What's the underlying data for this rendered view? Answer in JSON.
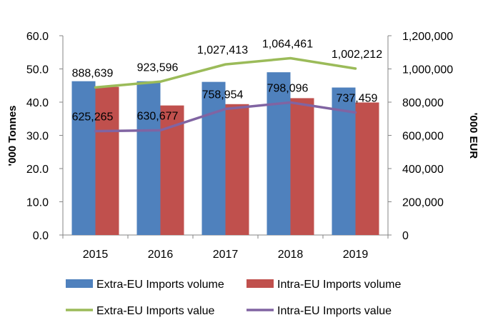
{
  "chart_data": {
    "type": "bar",
    "categories": [
      "2015",
      "2016",
      "2017",
      "2018",
      "2019"
    ],
    "series": [
      {
        "name": "Extra-EU Imports volume",
        "kind": "bar",
        "axis": "left",
        "color": "#4f81bd",
        "values": [
          46.3,
          46.3,
          46.1,
          49.0,
          44.4
        ]
      },
      {
        "name": "Intra-EU Imports volume",
        "kind": "bar",
        "axis": "left",
        "color": "#c0504d",
        "values": [
          44.6,
          39.0,
          39.4,
          41.2,
          39.9
        ]
      },
      {
        "name": "Extra-EU Imports value",
        "kind": "line",
        "axis": "right",
        "color": "#9bbb59",
        "values": [
          888639,
          923596,
          1027413,
          1064461,
          1002212
        ],
        "labels": [
          "888,639",
          "923,596",
          "1,027,413",
          "1,064,461",
          "1,002,212"
        ]
      },
      {
        "name": "Intra-EU Imports value",
        "kind": "line",
        "axis": "right",
        "color": "#8064a2",
        "values": [
          625265,
          630677,
          758954,
          798096,
          737459
        ],
        "labels": [
          "625,265",
          "630,677",
          "758,954",
          "798,096",
          "737,459"
        ]
      }
    ],
    "ylabel": "'000 Tonnes",
    "y2label": "'000 EUR",
    "ylim": [
      0,
      60
    ],
    "y2lim": [
      0,
      1200000
    ],
    "yticks": [
      "0.0",
      "10.0",
      "20.0",
      "30.0",
      "40.0",
      "50.0",
      "60.0"
    ],
    "y2ticks": [
      "0",
      "200,000",
      "400,000",
      "600,000",
      "800,000",
      "1,000,000",
      "1,200,000"
    ],
    "grid": false,
    "legend_position": "bottom"
  }
}
